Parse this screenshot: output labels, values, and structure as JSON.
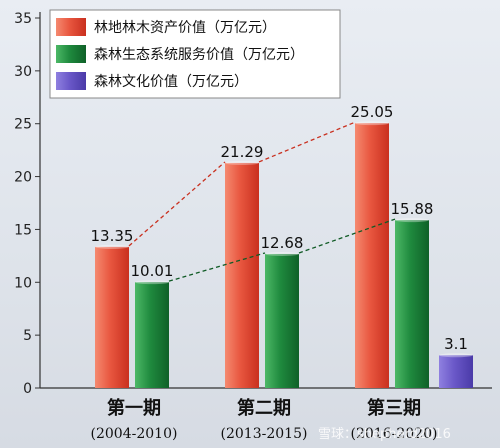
{
  "colors": {
    "series_forest_resources": "#e8563f",
    "series_ecosystem_services": "#1f8a3e",
    "series_forest_culture": "#6a58c8",
    "axis": "#333333"
  },
  "watermark": "雪球：shepherd2016",
  "chart_data": {
    "type": "bar",
    "title": "",
    "xlabel": "",
    "ylabel": "",
    "ylim": [
      0,
      35
    ],
    "yticks": [
      0,
      5,
      10,
      15,
      20,
      25,
      30,
      35
    ],
    "grid": false,
    "legend_position": "top-left",
    "categories": [
      {
        "name": "第一期",
        "period": "(2004-2010)"
      },
      {
        "name": "第二期",
        "period": "(2013-2015)"
      },
      {
        "name": "第三期",
        "period": "(2016-2020)"
      }
    ],
    "series": [
      {
        "name": "林地林木资产价值（万亿元）",
        "values": [
          13.35,
          21.29,
          25.05
        ],
        "labels": [
          "13.35",
          "21.29",
          "25.05"
        ],
        "color_key": "series_forest_resources",
        "trend_line": true
      },
      {
        "name": "森林生态系统服务价值（万亿元）",
        "values": [
          10.01,
          12.68,
          15.88
        ],
        "labels": [
          "10.01",
          "12.68",
          "15.88"
        ],
        "color_key": "series_ecosystem_services",
        "trend_line": true
      },
      {
        "name": "森林文化价值（万亿元）",
        "values": [
          null,
          null,
          3.1
        ],
        "labels": [
          "",
          "",
          "3.1"
        ],
        "color_key": "series_forest_culture",
        "trend_line": false
      }
    ]
  }
}
